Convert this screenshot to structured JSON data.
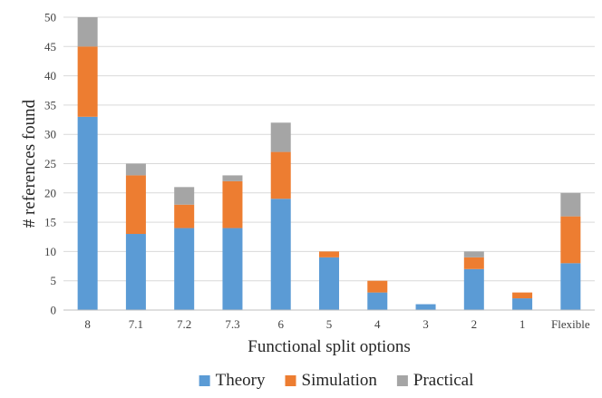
{
  "chart_data": {
    "type": "bar",
    "stacked": true,
    "title": "",
    "xlabel": "Functional split options",
    "ylabel": "# references found",
    "ylim": [
      0,
      50
    ],
    "yticks": [
      0,
      5,
      10,
      15,
      20,
      25,
      30,
      35,
      40,
      45,
      50
    ],
    "grid": true,
    "legend_position": "bottom",
    "categories": [
      "8",
      "7.1",
      "7.2",
      "7.3",
      "6",
      "5",
      "4",
      "3",
      "2",
      "1",
      "Flexible"
    ],
    "series": [
      {
        "name": "Theory",
        "color": "#5b9bd5",
        "values": [
          33,
          13,
          14,
          14,
          19,
          9,
          3,
          1,
          7,
          2,
          8
        ]
      },
      {
        "name": "Simulation",
        "color": "#ed7d31",
        "values": [
          12,
          10,
          4,
          8,
          8,
          1,
          2,
          0,
          2,
          1,
          8
        ]
      },
      {
        "name": "Practical",
        "color": "#a5a5a5",
        "values": [
          5,
          2,
          3,
          1,
          5,
          0,
          0,
          0,
          1,
          0,
          4
        ]
      }
    ]
  }
}
